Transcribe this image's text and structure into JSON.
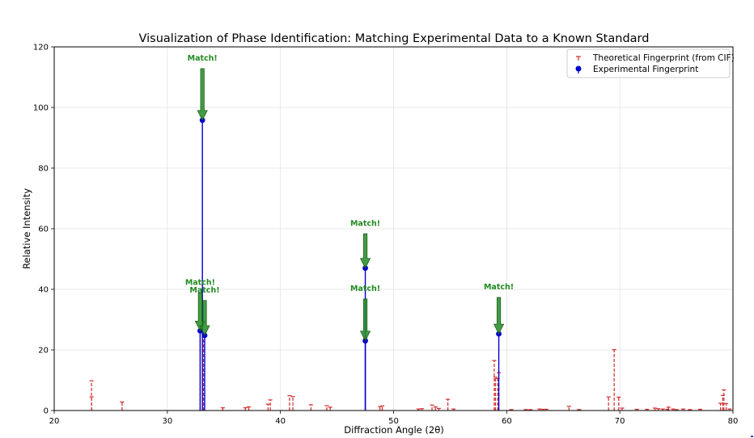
{
  "chart_data": {
    "type": "stem",
    "title": "Visualization of Phase Identification: Matching Experimental Data to a Known Standard",
    "xlabel": "Diffraction Angle (2θ)",
    "ylabel": "Relative Intensity",
    "xlim": [
      20,
      80
    ],
    "ylim": [
      0,
      120
    ],
    "xticks": [
      20,
      30,
      40,
      50,
      60,
      70,
      80
    ],
    "yticks": [
      0,
      20,
      40,
      60,
      80,
      100,
      120
    ],
    "grid": true,
    "legend_position": "top-right",
    "series": [
      {
        "name": "Theoretical Fingerprint (from CIF)",
        "style": "dashed-stem",
        "color": "#d62728",
        "points": [
          [
            23.3,
            9.8
          ],
          [
            23.3,
            4.5
          ],
          [
            26.0,
            2.8
          ],
          [
            32.9,
            26.5
          ],
          [
            33.2,
            25.2
          ],
          [
            34.9,
            0.9
          ],
          [
            36.9,
            0.9
          ],
          [
            37.2,
            1.2
          ],
          [
            38.9,
            2.1
          ],
          [
            39.1,
            3.5
          ],
          [
            40.8,
            4.9
          ],
          [
            41.1,
            4.6
          ],
          [
            42.7,
            1.9
          ],
          [
            44.1,
            1.6
          ],
          [
            44.4,
            1.1
          ],
          [
            47.5,
            23.8
          ],
          [
            48.8,
            1.3
          ],
          [
            49.0,
            1.5
          ],
          [
            52.2,
            0.5
          ],
          [
            52.5,
            0.6
          ],
          [
            53.4,
            1.8
          ],
          [
            53.7,
            1.2
          ],
          [
            54.0,
            0.7
          ],
          [
            54.8,
            3.7
          ],
          [
            55.3,
            0.5
          ],
          [
            58.9,
            16.5
          ],
          [
            59.0,
            11.0
          ],
          [
            59.2,
            10.6
          ],
          [
            59.3,
            12.5
          ],
          [
            60.4,
            0.3
          ],
          [
            61.7,
            0.3
          ],
          [
            62.1,
            0.3
          ],
          [
            62.9,
            0.5
          ],
          [
            63.2,
            0.4
          ],
          [
            63.5,
            0.4
          ],
          [
            65.5,
            1.4
          ],
          [
            66.4,
            0.3
          ],
          [
            69.0,
            4.5
          ],
          [
            69.5,
            20.1
          ],
          [
            69.9,
            4.4
          ],
          [
            70.2,
            0.8
          ],
          [
            71.5,
            0.4
          ],
          [
            72.4,
            0.4
          ],
          [
            73.1,
            0.8
          ],
          [
            73.4,
            0.6
          ],
          [
            73.8,
            0.5
          ],
          [
            74.2,
            0.4
          ],
          [
            74.3,
            1.1
          ],
          [
            74.7,
            0.5
          ],
          [
            75.0,
            0.3
          ],
          [
            75.6,
            0.5
          ],
          [
            76.2,
            0.3
          ],
          [
            77.1,
            0.4
          ],
          [
            78.9,
            2.4
          ],
          [
            79.1,
            5.0
          ],
          [
            79.2,
            6.8
          ],
          [
            79.4,
            2.3
          ],
          [
            79.7,
            0.5
          ]
        ]
      },
      {
        "name": "Experimental Fingerprint",
        "style": "solid-stem-dot",
        "color": "#0000cc",
        "points": [
          [
            32.9,
            26.3
          ],
          [
            33.1,
            95.8
          ],
          [
            33.3,
            24.8
          ],
          [
            47.5,
            23.0
          ],
          [
            47.5,
            47.0
          ],
          [
            59.3,
            25.3
          ]
        ]
      }
    ],
    "annotations": [
      {
        "text": "Match!",
        "x": 33.1,
        "y": 95.8,
        "text_y": 115.5
      },
      {
        "text": "Match!",
        "x": 32.9,
        "y": 26.3,
        "text_y": 41.5
      },
      {
        "text": "Match!",
        "x": 33.3,
        "y": 24.8,
        "text_y": 39.0
      },
      {
        "text": "Match!",
        "x": 47.5,
        "y": 47.0,
        "text_y": 61.0
      },
      {
        "text": "Match!",
        "x": 47.5,
        "y": 23.0,
        "text_y": 39.5
      },
      {
        "text": "Match!",
        "x": 59.3,
        "y": 25.3,
        "text_y": 40.0
      }
    ],
    "annotation_color": "#228b22"
  }
}
